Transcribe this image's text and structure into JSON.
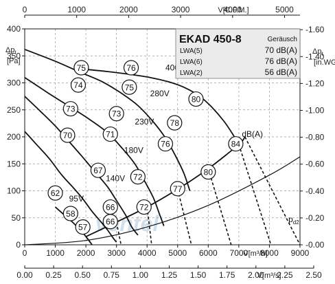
{
  "chart_data": {
    "type": "line",
    "title": "EKAD 450-8",
    "x_axes": {
      "bottom_main": {
        "label": "V[m³/h]",
        "range": [
          0,
          9000
        ],
        "ticks": [
          0,
          1000,
          2000,
          3000,
          4000,
          5000,
          6000,
          7000,
          8000,
          9000
        ]
      },
      "bottom_secondary": {
        "label": "V[m³/s]",
        "range": [
          0,
          2.5
        ],
        "ticks": [
          "0.00",
          "0.25",
          "0.50",
          "0.75",
          "1.00",
          "1.25",
          "1.50",
          "1.75",
          "2.00",
          "2.25",
          "2.50"
        ]
      },
      "top": {
        "label": "V[C.F.M.]",
        "range": [
          0,
          5297
        ],
        "ticks": [
          0,
          1000,
          2000,
          3000,
          4000,
          5000
        ]
      }
    },
    "y_axes": {
      "left": {
        "label_main": "Δp",
        "label_sub": "t",
        "unit": "[Pa]",
        "range": [
          0,
          400
        ],
        "ticks": [
          0,
          50,
          100,
          150,
          200,
          250,
          300,
          350,
          400
        ]
      },
      "right": {
        "label_main": "Δp",
        "label_sub": "t",
        "unit": "[in.WG]",
        "range": [
          0,
          1.606
        ],
        "ticks": [
          "0.00",
          "0.20",
          "0.40",
          "0.60",
          "0.80",
          "1.00",
          "1.20",
          "1.40",
          "1.60"
        ]
      }
    },
    "grid": "dashed",
    "series": [
      {
        "name": "400V",
        "x": [
          2000,
          2700,
          3400,
          4100,
          4700,
          5200,
          5700,
          6100,
          6500,
          6800,
          7000
        ],
        "y": [
          325,
          321,
          316,
          310,
          302,
          292,
          276,
          256,
          230,
          205,
          185
        ]
      },
      {
        "name": "280V",
        "x": [
          0,
          1000,
          1800,
          2500,
          3100,
          3700,
          4200,
          4600,
          4900,
          5200,
          5400
        ],
        "y": [
          362,
          340,
          320,
          303,
          283,
          258,
          228,
          198,
          168,
          133,
          100
        ]
      },
      {
        "name": "230V",
        "x": [
          0,
          800,
          1500,
          2100,
          2700,
          3200,
          3600,
          3900,
          4200,
          4400,
          4550
        ],
        "y": [
          310,
          280,
          255,
          233,
          208,
          178,
          150,
          120,
          88,
          58,
          35
        ]
      },
      {
        "name": "180V",
        "x": [
          0,
          500,
          1000,
          1500,
          1900,
          2300,
          2700,
          3000,
          3300,
          3500,
          3700
        ],
        "y": [
          275,
          248,
          220,
          188,
          162,
          135,
          108,
          82,
          55,
          33,
          18
        ]
      },
      {
        "name": "140V",
        "x": [
          0,
          400,
          800,
          1200,
          1600,
          1900,
          2200,
          2500,
          2700,
          2900,
          3000
        ],
        "y": [
          210,
          185,
          160,
          130,
          105,
          85,
          62,
          42,
          28,
          12,
          5
        ]
      },
      {
        "name": "95V",
        "x": [
          1000,
          1300,
          1600,
          1900,
          2100,
          2200
        ],
        "y": [
          70,
          55,
          40,
          22,
          8,
          0
        ]
      },
      {
        "name": "pd2",
        "x": [
          0,
          2000,
          4000,
          6000,
          8000,
          9000
        ],
        "y": [
          0,
          8,
          33,
          73,
          129,
          163
        ]
      },
      {
        "name": "system",
        "x": [
          2000,
          3000,
          4000,
          5000,
          6000,
          7000,
          7200
        ],
        "y": [
          15,
          42,
          70,
          103,
          141,
          186,
          200
        ]
      }
    ],
    "curve_labels": [
      {
        "text": "400V",
        "x": 4600,
        "y": 323
      },
      {
        "text": "280V",
        "x": 4100,
        "y": 275
      },
      {
        "text": "230V",
        "x": 3600,
        "y": 223
      },
      {
        "text": "180V",
        "x": 3250,
        "y": 170
      },
      {
        "text": "140V",
        "x": 2650,
        "y": 118
      },
      {
        "text": "95V",
        "x": 1450,
        "y": 80
      },
      {
        "text": "dB(A)",
        "x": 7100,
        "y": 200
      }
    ],
    "pd2_label": {
      "main": "p",
      "sub": "d2",
      "x": 8620,
      "y": 42
    },
    "markers": [
      {
        "value": "75",
        "x": 1850,
        "y": 328
      },
      {
        "value": "76",
        "x": 3480,
        "y": 328
      },
      {
        "value": "74",
        "x": 1750,
        "y": 296
      },
      {
        "value": "75",
        "x": 3420,
        "y": 292
      },
      {
        "value": "80",
        "x": 5600,
        "y": 270
      },
      {
        "value": "73",
        "x": 1500,
        "y": 252
      },
      {
        "value": "73",
        "x": 3000,
        "y": 243
      },
      {
        "value": "78",
        "x": 4900,
        "y": 226
      },
      {
        "value": "70",
        "x": 1400,
        "y": 203
      },
      {
        "value": "71",
        "x": 2800,
        "y": 205
      },
      {
        "value": "76",
        "x": 4600,
        "y": 187
      },
      {
        "value": "84",
        "x": 6900,
        "y": 187
      },
      {
        "value": "67",
        "x": 2400,
        "y": 138
      },
      {
        "value": "72",
        "x": 3700,
        "y": 126
      },
      {
        "value": "80",
        "x": 6000,
        "y": 135
      },
      {
        "value": "62",
        "x": 1000,
        "y": 96
      },
      {
        "value": "77",
        "x": 5000,
        "y": 104
      },
      {
        "value": "66",
        "x": 2800,
        "y": 70
      },
      {
        "value": "58",
        "x": 1500,
        "y": 58
      },
      {
        "value": "72",
        "x": 3900,
        "y": 70
      },
      {
        "value": "66",
        "x": 2800,
        "y": 43
      },
      {
        "value": "57",
        "x": 1900,
        "y": 33
      }
    ],
    "dashed_drops": [
      {
        "x": [
          2000,
          2200
        ],
        "y": [
          15,
          0
        ]
      },
      {
        "x": [
          3000,
          3150
        ],
        "y": [
          42,
          0
        ]
      },
      {
        "x": [
          4000,
          4150
        ],
        "y": [
          70,
          0
        ]
      },
      {
        "x": [
          5000,
          5450
        ],
        "y": [
          103,
          0
        ]
      },
      {
        "x": [
          6000,
          6750
        ],
        "y": [
          141,
          0
        ]
      },
      {
        "x": [
          7000,
          8050
        ],
        "y": [
          186,
          0
        ]
      },
      {
        "x": [
          7200,
          9000
        ],
        "y": [
          200,
          0
        ]
      }
    ],
    "legend": {
      "title": "EKAD 450-8",
      "header": "Geräusch",
      "rows": [
        {
          "label": "LWA(5)",
          "value": "70 dB(A)"
        },
        {
          "label": "LWA(6)",
          "value": "76 dB(A)"
        },
        {
          "label": "LWA(2)",
          "value": "56 dB(A)"
        }
      ],
      "position": "top-right"
    },
    "watermark": "ventel",
    "colors": {
      "curve": "#111111",
      "grid": "#999999",
      "legend_bg": "#ebebeb",
      "watermark": "#bcd2e6"
    }
  }
}
